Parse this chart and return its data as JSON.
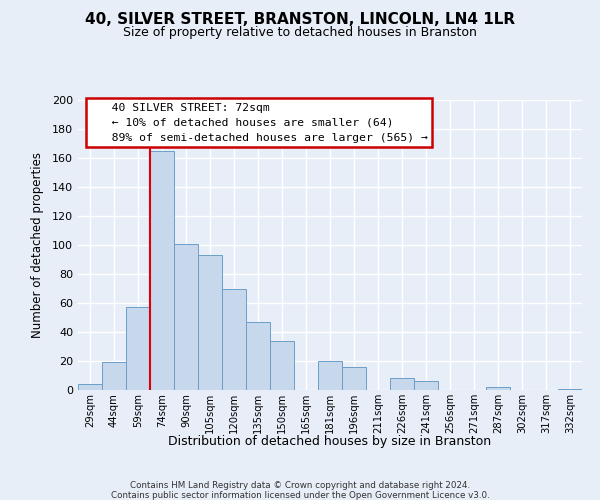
{
  "title": "40, SILVER STREET, BRANSTON, LINCOLN, LN4 1LR",
  "subtitle": "Size of property relative to detached houses in Branston",
  "xlabel": "Distribution of detached houses by size in Branston",
  "ylabel": "Number of detached properties",
  "bar_color": "#c8d8ec",
  "bar_edge_color": "#6a9fc8",
  "bins": [
    "29sqm",
    "44sqm",
    "59sqm",
    "74sqm",
    "90sqm",
    "105sqm",
    "120sqm",
    "135sqm",
    "150sqm",
    "165sqm",
    "181sqm",
    "196sqm",
    "211sqm",
    "226sqm",
    "241sqm",
    "256sqm",
    "271sqm",
    "287sqm",
    "302sqm",
    "317sqm",
    "332sqm"
  ],
  "values": [
    4,
    19,
    57,
    165,
    101,
    93,
    70,
    47,
    34,
    0,
    20,
    16,
    0,
    8,
    6,
    0,
    0,
    2,
    0,
    0,
    1
  ],
  "vline_color": "#dd0000",
  "ylim": [
    0,
    200
  ],
  "yticks": [
    0,
    20,
    40,
    60,
    80,
    100,
    120,
    140,
    160,
    180,
    200
  ],
  "annotation_title": "40 SILVER STREET: 72sqm",
  "annotation_line1": "← 10% of detached houses are smaller (64)",
  "annotation_line2": "89% of semi-detached houses are larger (565) →",
  "footer1": "Contains HM Land Registry data © Crown copyright and database right 2024.",
  "footer2": "Contains public sector information licensed under the Open Government Licence v3.0.",
  "background_color": "#e8eef8",
  "plot_background": "#e8eef8",
  "grid_color": "#ffffff",
  "title_fontsize": 11,
  "subtitle_fontsize": 9
}
